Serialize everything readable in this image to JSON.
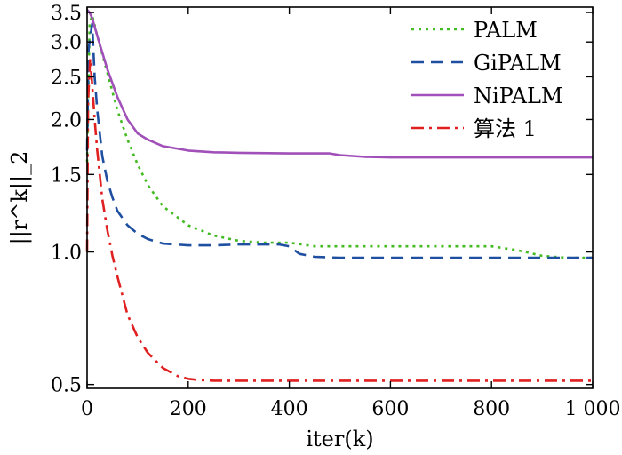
{
  "chart_data": {
    "type": "line",
    "xlabel": "iter(k)",
    "ylabel": "||r^k||_2",
    "xlim": [
      0,
      1000
    ],
    "ylim": [
      0.49,
      3.6
    ],
    "y_scale": "log",
    "grid": false,
    "legend_position": "top-right",
    "x_ticks": [
      0,
      200,
      400,
      600,
      800,
      1000
    ],
    "x_tick_labels": [
      "0",
      "200",
      "400",
      "600",
      "800",
      "1 000"
    ],
    "y_ticks": [
      0.5,
      1.0,
      1.5,
      2.0,
      2.5,
      3.0,
      3.5
    ],
    "y_tick_labels": [
      "0.5",
      "1.0",
      "1.5",
      "2.0",
      "2.5",
      "3.0",
      "3.5"
    ],
    "series": [
      {
        "name": "PALM",
        "color": "#44bb22",
        "dash": "dotted",
        "x": [
          0,
          5,
          10,
          20,
          40,
          60,
          80,
          100,
          120,
          150,
          200,
          250,
          300,
          350,
          400,
          450,
          500,
          600,
          700,
          800,
          850,
          900,
          950,
          1000
        ],
        "y": [
          1.6,
          3.3,
          3.45,
          3.1,
          2.55,
          2.1,
          1.8,
          1.58,
          1.42,
          1.27,
          1.15,
          1.09,
          1.06,
          1.05,
          1.05,
          1.03,
          1.03,
          1.03,
          1.03,
          1.03,
          1.01,
          0.98,
          0.97,
          0.97
        ]
      },
      {
        "name": "GiPALM",
        "color": "#1f4fa0",
        "dash": "dashed",
        "x": [
          0,
          3,
          10,
          15,
          20,
          30,
          40,
          50,
          60,
          80,
          100,
          120,
          150,
          200,
          250,
          300,
          350,
          380,
          400,
          420,
          450,
          500,
          600,
          700,
          800,
          900,
          1000
        ],
        "y": [
          1.7,
          2.9,
          3.3,
          2.5,
          2.1,
          1.65,
          1.45,
          1.33,
          1.24,
          1.15,
          1.1,
          1.07,
          1.045,
          1.035,
          1.035,
          1.04,
          1.04,
          1.04,
          1.03,
          0.99,
          0.975,
          0.97,
          0.97,
          0.97,
          0.97,
          0.97,
          0.97
        ]
      },
      {
        "name": "NiPALM",
        "color": "#a050b8",
        "dash": "solid",
        "x": [
          0,
          5,
          10,
          20,
          40,
          60,
          80,
          100,
          120,
          150,
          200,
          250,
          300,
          400,
          480,
          500,
          550,
          600,
          700,
          800,
          900,
          1000
        ],
        "y": [
          3.55,
          3.5,
          3.4,
          3.1,
          2.6,
          2.25,
          2.0,
          1.86,
          1.8,
          1.74,
          1.7,
          1.685,
          1.68,
          1.675,
          1.675,
          1.66,
          1.645,
          1.64,
          1.64,
          1.64,
          1.64,
          1.64
        ]
      },
      {
        "name": "算法 1",
        "color": "#e02020",
        "dash": "dashdot",
        "x": [
          0,
          2,
          6,
          10,
          15,
          20,
          30,
          40,
          50,
          60,
          80,
          100,
          120,
          150,
          180,
          200,
          220,
          250,
          300,
          400,
          600,
          800,
          1000
        ],
        "y": [
          1.0,
          2.2,
          2.75,
          2.4,
          2.0,
          1.7,
          1.32,
          1.12,
          0.98,
          0.88,
          0.72,
          0.64,
          0.59,
          0.545,
          0.522,
          0.515,
          0.512,
          0.51,
          0.51,
          0.51,
          0.51,
          0.51,
          0.51
        ]
      }
    ]
  }
}
